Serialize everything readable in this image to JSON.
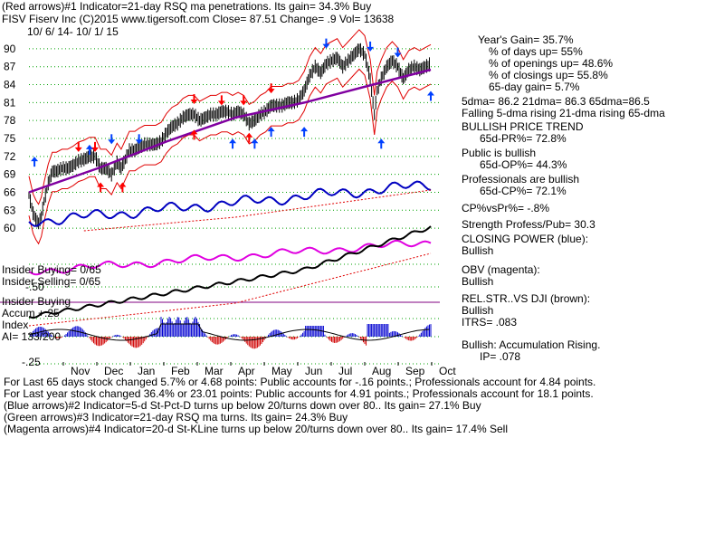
{
  "header": {
    "line1": "(Red arrows)#1 Indicator=21-day RSQ ma penetrations. Its gain= 34.3% Buy",
    "line2": "FISV   Fiserv Inc  (C)2015 www.tigersoft.com    Close=  87.51  Change= .9 Vol= 13638",
    "line3": "10/ 6/ 14-  10/ 1/ 15"
  },
  "stats": [
    "Year's Gain= 35.7%",
    "% of days up= 55%",
    "% of openings up= 48.6%",
    "% of closings up= 55.8%",
    "65-day gain= 5.7%"
  ],
  "dma": {
    "line1": "5dma= 86.2  21dma= 86.3  65dma=86.5",
    "line2": "Falling 5-dma  rising 21-dma  rising 65-dma"
  },
  "right_notes": [
    "BULLISH PRICE TREND",
    "65d-PR%= 72.8%",
    "Public is bullish",
    "65d-OP%= 44.3%",
    "Professionals are bullish",
    "65d-CP%= 72.1%",
    "CP%vsPr%= -.8%",
    "Strength Profess/Pub= 30.3",
    "CLOSING POWER (blue):",
    "Bullish",
    "OBV (magenta):",
    "Bullish",
    "REL.STR..VS DJI (brown):",
    "Bullish",
    "ITRS= .083",
    "Bullish: Accumulation Rising.",
    "IP=  .078"
  ],
  "left_labels": {
    "insider_buying_1": "Insider Buying= 0/65",
    "insider_selling": "Insider Selling= 0/65",
    "minus50": "-.50",
    "insider_buying_2": "Insider Buying",
    "accum": "Accum +.25",
    "index": "Index",
    "ai": "AI= 133/200",
    "minus25": "-.25"
  },
  "footer": [
    "For Last 65 days stock changed  5.7% or  4.68 points:  Public accounts for -.16 points.;  Professionals account for  4.84 points.",
    "For Last year stock changed  36.4% or  23.01 points:  Public accounts for  4.91 points.;  Professionals account for  18.1 points.",
    "(Blue arrows)#2 Indicator=5-d St-Pct-D turns up below 20/turns down over 80.. Its gain= 27.1% Buy",
    "(Green arrows)#3 Indicator=21-day RSQ ma turns. Its gain= 24.3% Buy",
    "(Magenta arrows)#4 Indicator=20-d St-KLine turns up below 20/turns down over 80.. Its gain= 17.4% Sell"
  ],
  "chart_data": {
    "type": "line",
    "yticks": [
      90,
      87,
      84,
      81,
      78,
      75,
      72,
      69,
      66,
      63,
      60
    ],
    "ylim": [
      58.5,
      91.5
    ],
    "xticks": [
      "Nov",
      "Dec",
      "Jan",
      "Feb",
      "Mar",
      "Apr",
      "May",
      "Jun",
      "Jul",
      "Aug",
      "Sep",
      "Oct"
    ],
    "grid": true,
    "price_close": [
      [
        0,
        65.5
      ],
      [
        3,
        62.5
      ],
      [
        5,
        61.5
      ],
      [
        7,
        60.8
      ],
      [
        9,
        62.0
      ],
      [
        11,
        64.5
      ],
      [
        14,
        67.5
      ],
      [
        17,
        69.5
      ],
      [
        20,
        69.5
      ],
      [
        24,
        70.0
      ],
      [
        28,
        70.0
      ],
      [
        32,
        70.5
      ],
      [
        36,
        71.2
      ],
      [
        40,
        71.5
      ],
      [
        44,
        72.0
      ],
      [
        48,
        72.0
      ],
      [
        52,
        70.0
      ],
      [
        56,
        70.0
      ],
      [
        60,
        69.0
      ],
      [
        64,
        71.0
      ],
      [
        67,
        70.0
      ],
      [
        70,
        71.5
      ],
      [
        73,
        73.0
      ],
      [
        77,
        73.0
      ],
      [
        80,
        73.5
      ],
      [
        84,
        74.0
      ],
      [
        88,
        74.0
      ],
      [
        92,
        74.0
      ],
      [
        96,
        74.5
      ],
      [
        100,
        76.0
      ],
      [
        104,
        77.0
      ],
      [
        108,
        77.5
      ],
      [
        112,
        78.5
      ],
      [
        116,
        79.0
      ],
      [
        120,
        79.0
      ],
      [
        124,
        78.0
      ],
      [
        128,
        78.5
      ],
      [
        132,
        79.0
      ],
      [
        136,
        79.0
      ],
      [
        140,
        79.5
      ],
      [
        144,
        79.5
      ],
      [
        148,
        79.0
      ],
      [
        152,
        79.5
      ],
      [
        156,
        79.0
      ],
      [
        160,
        77.5
      ],
      [
        164,
        78.0
      ],
      [
        168,
        79.0
      ],
      [
        172,
        79.5
      ],
      [
        176,
        80.5
      ],
      [
        180,
        80.5
      ],
      [
        184,
        80.5
      ],
      [
        188,
        81.0
      ],
      [
        192,
        81.0
      ],
      [
        196,
        81.5
      ],
      [
        200,
        83.0
      ],
      [
        204,
        85.5
      ],
      [
        208,
        87.0
      ],
      [
        212,
        86.0
      ],
      [
        216,
        87.5
      ],
      [
        220,
        88.0
      ],
      [
        224,
        88.5
      ],
      [
        228,
        87.0
      ],
      [
        232,
        88.0
      ],
      [
        236,
        89.0
      ],
      [
        240,
        90.0
      ],
      [
        244,
        89.0
      ],
      [
        248,
        85.0
      ],
      [
        251,
        79.0
      ],
      [
        253,
        83.0
      ],
      [
        256,
        85.0
      ],
      [
        260,
        87.0
      ],
      [
        264,
        88.0
      ],
      [
        268,
        87.0
      ],
      [
        272,
        85.0
      ],
      [
        276,
        86.5
      ],
      [
        280,
        87.0
      ],
      [
        284,
        86.5
      ],
      [
        288,
        87.0
      ],
      [
        292,
        87.5
      ]
    ],
    "series": [
      {
        "name": "",
        "values": [
          [
            0,
            66.0
          ],
          [
            50,
            70.0
          ],
          [
            100,
            74.5
          ],
          [
            150,
            78.5
          ],
          [
            200,
            81.0
          ],
          [
            250,
            84.0
          ],
          [
            292,
            86.5
          ]
        ]
      }
    ],
    "red_arrows_down": [
      [
        36,
        73.2
      ],
      [
        48,
        73.2
      ],
      [
        120,
        81.2
      ],
      [
        140,
        81.0
      ],
      [
        156,
        81.0
      ],
      [
        176,
        83.0
      ]
    ],
    "red_arrows_up": [
      [
        52,
        67.2
      ],
      [
        68,
        67.2
      ],
      [
        120,
        76.0
      ],
      [
        160,
        75.5
      ]
    ],
    "blue_arrows_down": [
      [
        60,
        74.5
      ],
      [
        80,
        74.5
      ],
      [
        216,
        90.5
      ],
      [
        248,
        90.0
      ],
      [
        268,
        89.0
      ]
    ],
    "blue_arrows_up": [
      [
        4,
        71.5
      ],
      [
        44,
        73.5
      ],
      [
        148,
        74.5
      ],
      [
        164,
        74.5
      ],
      [
        176,
        76.5
      ],
      [
        200,
        76.5
      ],
      [
        256,
        74.5
      ],
      [
        292,
        82.5
      ]
    ]
  }
}
